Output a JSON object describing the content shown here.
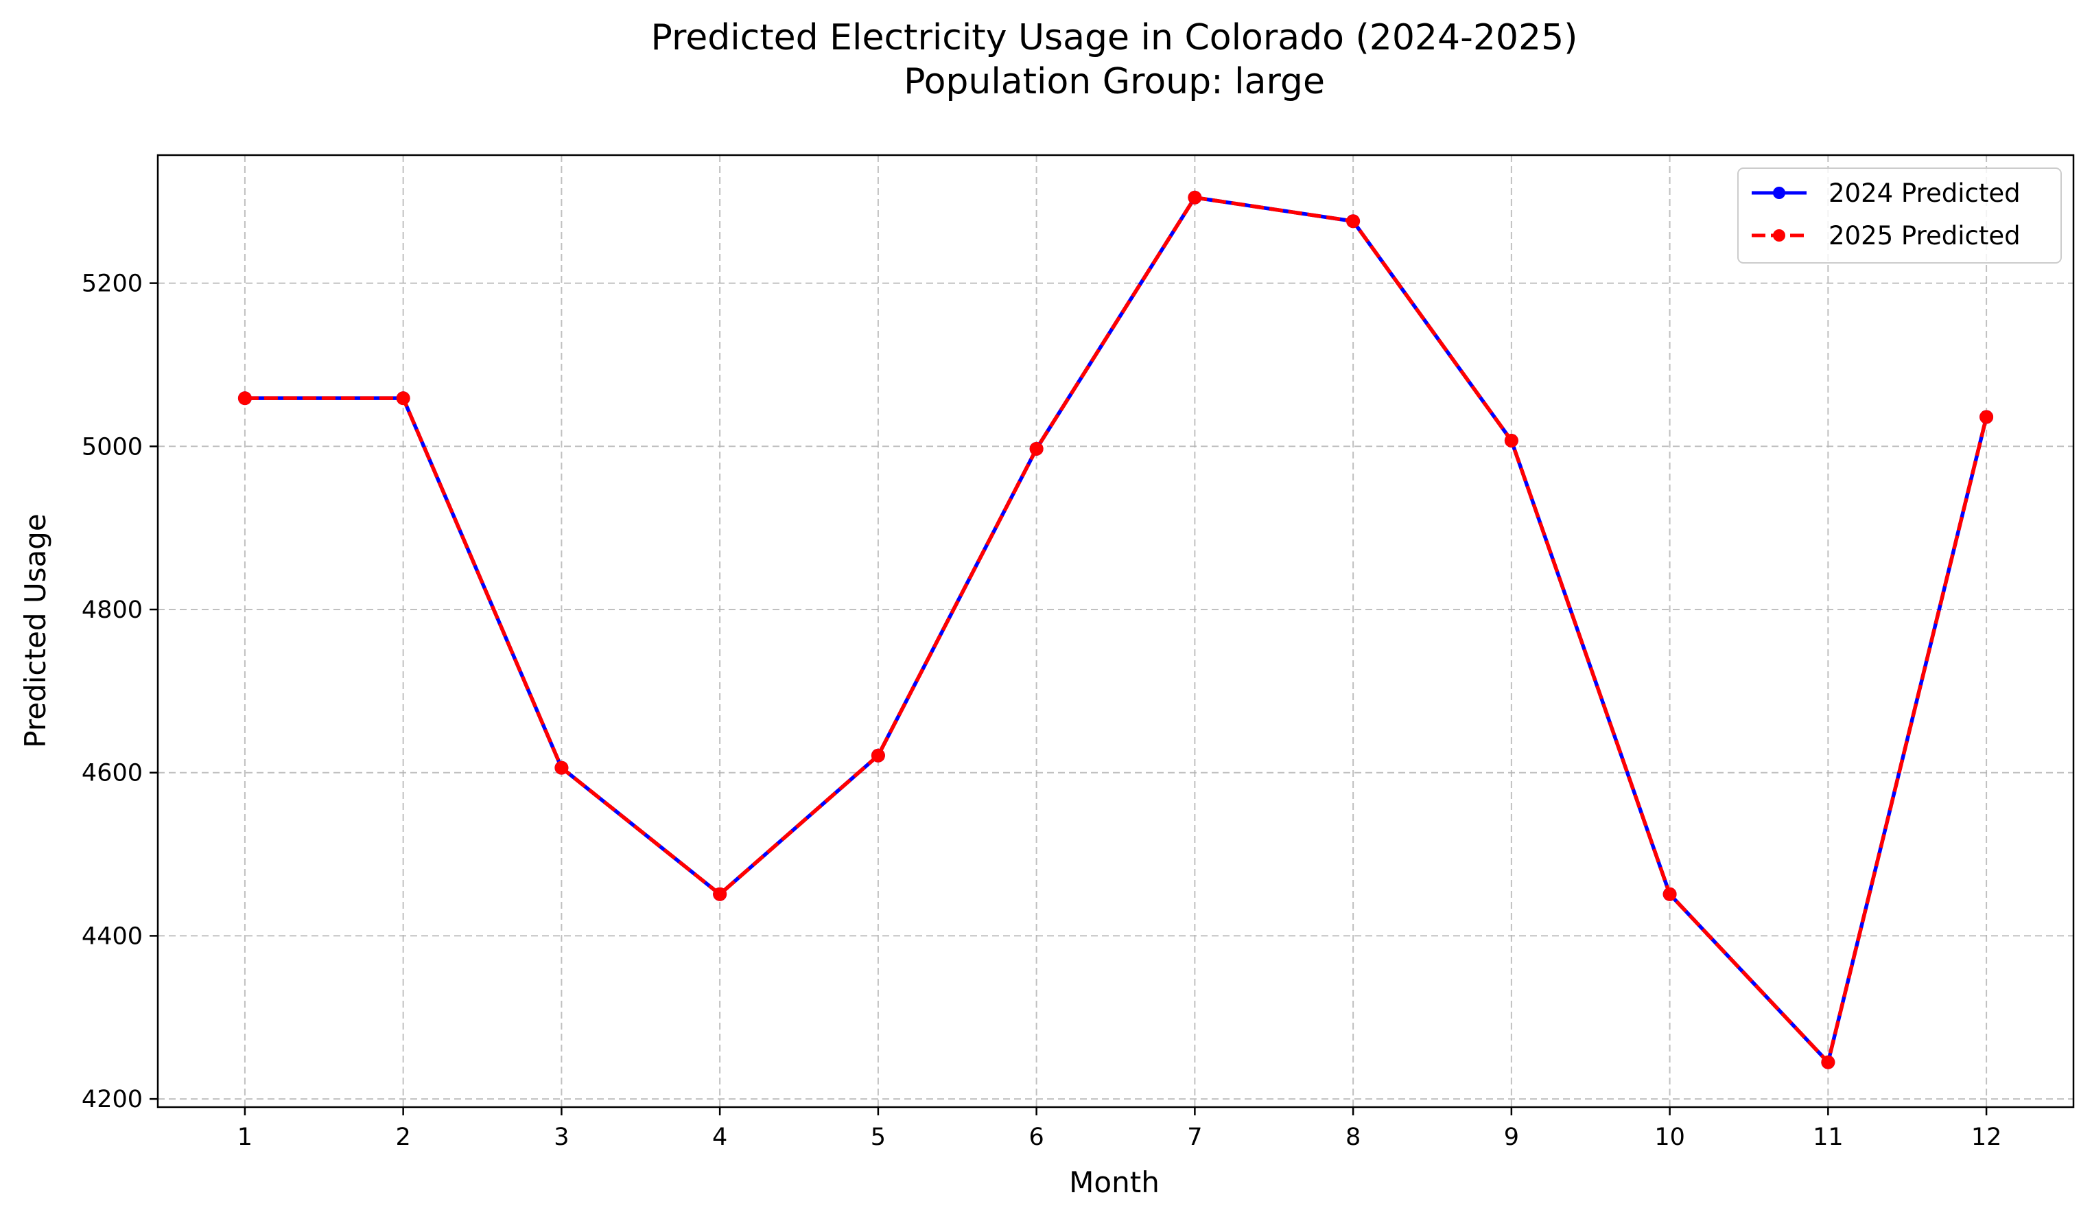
{
  "chart_data": {
    "type": "line",
    "title": "Predicted Electricity Usage in Colorado (2024-2025)",
    "subtitle": "Population Group: large",
    "xlabel": "Month",
    "ylabel": "Predicted Usage",
    "x": [
      1,
      2,
      3,
      4,
      5,
      6,
      7,
      8,
      9,
      10,
      11,
      12
    ],
    "xticks": [
      "1",
      "2",
      "3",
      "4",
      "5",
      "6",
      "7",
      "8",
      "9",
      "10",
      "11",
      "12"
    ],
    "yticks": [
      "4200",
      "4400",
      "4600",
      "4800",
      "5000",
      "5200"
    ],
    "ylim": [
      4190,
      5357
    ],
    "xlim": [
      0.45,
      12.55
    ],
    "grid": true,
    "legend_position": "top-right",
    "series": [
      {
        "name": "2024 Predicted",
        "color": "#0000ff",
        "style": "solid",
        "values": [
          5059,
          5059,
          4606,
          4451,
          4621,
          4997,
          5305,
          5276,
          5007,
          4451,
          4245,
          5036
        ]
      },
      {
        "name": "2025 Predicted",
        "color": "#ff0000",
        "style": "dashed",
        "values": [
          5059,
          5059,
          4606,
          4451,
          4621,
          4997,
          5305,
          5276,
          5007,
          4451,
          4245,
          5036
        ]
      }
    ]
  }
}
